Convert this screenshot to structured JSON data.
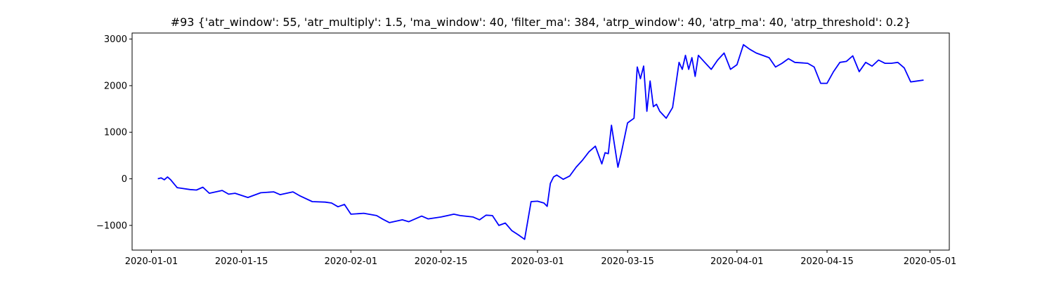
{
  "chart_data": {
    "type": "line",
    "title": "#93 {'atr_window': 55, 'atr_multiply': 1.5, 'ma_window': 40, 'filter_ma': 384, 'atrp_window': 40, 'atrp_ma': 40, 'atrp_threshold': 0.2}",
    "xlabel": "",
    "ylabel": "",
    "xlim": [
      "2019-12-29",
      "2020-05-04"
    ],
    "ylim": [
      -1530,
      3130
    ],
    "x_ticks": [
      "2020-01-01",
      "2020-01-15",
      "2020-02-01",
      "2020-02-15",
      "2020-03-01",
      "2020-03-15",
      "2020-04-01",
      "2020-04-15",
      "2020-05-01"
    ],
    "y_ticks": [
      -1000,
      0,
      1000,
      2000,
      3000
    ],
    "y_tick_labels": [
      "−1000",
      "0",
      "1000",
      "2000",
      "3000"
    ],
    "grid": false,
    "legend": "none",
    "series": [
      {
        "color": "#0000ff",
        "x": [
          "2020-01-02",
          "2020-01-02",
          "2020-01-03",
          "2020-01-03",
          "2020-01-04",
          "2020-01-05",
          "2020-01-07",
          "2020-01-08",
          "2020-01-09",
          "2020-01-10",
          "2020-01-12",
          "2020-01-13",
          "2020-01-14",
          "2020-01-16",
          "2020-01-18",
          "2020-01-20",
          "2020-01-21",
          "2020-01-23",
          "2020-01-24",
          "2020-01-26",
          "2020-01-28",
          "2020-01-29",
          "2020-01-30",
          "2020-01-31",
          "2020-02-01",
          "2020-02-03",
          "2020-02-05",
          "2020-02-06",
          "2020-02-07",
          "2020-02-09",
          "2020-02-10",
          "2020-02-12",
          "2020-02-13",
          "2020-02-15",
          "2020-02-17",
          "2020-02-18",
          "2020-02-20",
          "2020-02-21",
          "2020-02-22",
          "2020-02-23",
          "2020-02-24",
          "2020-02-25",
          "2020-02-26",
          "2020-02-27",
          "2020-02-28",
          "2020-02-29",
          "2020-03-01",
          "2020-03-02",
          "2020-03-02",
          "2020-03-03",
          "2020-03-03",
          "2020-03-04",
          "2020-03-05",
          "2020-03-06",
          "2020-03-07",
          "2020-03-08",
          "2020-03-09",
          "2020-03-10",
          "2020-03-11",
          "2020-03-11",
          "2020-03-12",
          "2020-03-12",
          "2020-03-13",
          "2020-03-13",
          "2020-03-14",
          "2020-03-15",
          "2020-03-16",
          "2020-03-16",
          "2020-03-17",
          "2020-03-17",
          "2020-03-18",
          "2020-03-18",
          "2020-03-19",
          "2020-03-19",
          "2020-03-20",
          "2020-03-21",
          "2020-03-22",
          "2020-03-23",
          "2020-03-23",
          "2020-03-24",
          "2020-03-24",
          "2020-03-25",
          "2020-03-25",
          "2020-03-26",
          "2020-03-27",
          "2020-03-28",
          "2020-03-29",
          "2020-03-30",
          "2020-03-31",
          "2020-04-01",
          "2020-04-02",
          "2020-04-03",
          "2020-04-04",
          "2020-04-06",
          "2020-04-07",
          "2020-04-08",
          "2020-04-09",
          "2020-04-10",
          "2020-04-12",
          "2020-04-13",
          "2020-04-14",
          "2020-04-15",
          "2020-04-16",
          "2020-04-17",
          "2020-04-18",
          "2020-04-19",
          "2020-04-20",
          "2020-04-21",
          "2020-04-22",
          "2020-04-23",
          "2020-04-24",
          "2020-04-25",
          "2020-04-26",
          "2020-04-27",
          "2020-04-28",
          "2020-04-29",
          "2020-04-30"
        ],
        "values": [
          0,
          20,
          -20,
          40,
          -20,
          -190,
          -230,
          -240,
          -180,
          -310,
          -250,
          -330,
          -310,
          -400,
          -300,
          -280,
          -340,
          -280,
          -360,
          -490,
          -500,
          -520,
          -600,
          -550,
          -760,
          -740,
          -790,
          -870,
          -940,
          -880,
          -920,
          -800,
          -860,
          -820,
          -760,
          -790,
          -820,
          -880,
          -780,
          -790,
          -1000,
          -950,
          -1110,
          -1200,
          -1300,
          -490,
          -480,
          -520,
          -590,
          -100,
          40,
          80,
          -10,
          60,
          250,
          400,
          580,
          700,
          320,
          560,
          540,
          1150,
          700,
          250,
          540,
          1200,
          1300,
          2400,
          2150,
          2420,
          1450,
          2100,
          1550,
          1600,
          1450,
          1300,
          1530,
          2500,
          2350,
          2650,
          2350,
          2600,
          2200,
          2650,
          2500,
          2350,
          2550,
          2700,
          2350,
          2450,
          2880,
          2780,
          2700,
          2600,
          2400,
          2480,
          2580,
          2500,
          2480,
          2400,
          2050,
          2050,
          2300,
          2500,
          2520,
          2640,
          2300,
          2500,
          2420,
          2550,
          2480,
          2480,
          2500,
          2380,
          2080,
          2100,
          2120
        ]
      }
    ]
  }
}
